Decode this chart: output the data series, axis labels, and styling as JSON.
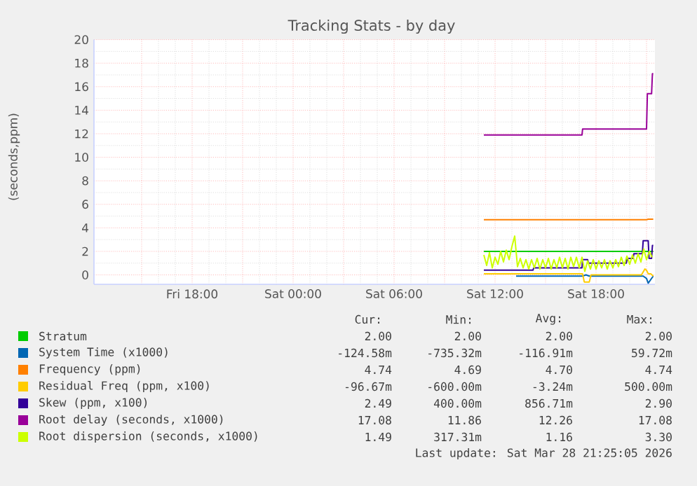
{
  "chart_data": {
    "type": "line",
    "title": "Tracking Stats - by day",
    "ylabel": "(seconds,ppm)",
    "xlim": [
      "2026-03-27T12:10",
      "2026-03-28T21:30"
    ],
    "ylim": [
      -0.8,
      20
    ],
    "xticks": [
      {
        "value": "2026-03-27T15:00",
        "label": null
      },
      {
        "value": "2026-03-27T18:00",
        "label": "Fri 18:00"
      },
      {
        "value": "2026-03-27T21:00",
        "label": null
      },
      {
        "value": "2026-03-28T00:00",
        "label": "Sat 00:00"
      },
      {
        "value": "2026-03-28T03:00",
        "label": null
      },
      {
        "value": "2026-03-28T06:00",
        "label": "Sat 06:00"
      },
      {
        "value": "2026-03-28T09:00",
        "label": null
      },
      {
        "value": "2026-03-28T12:00",
        "label": "Sat 12:00"
      },
      {
        "value": "2026-03-28T15:00",
        "label": null
      },
      {
        "value": "2026-03-28T18:00",
        "label": "Sat 18:00"
      },
      {
        "value": "2026-03-28T21:00",
        "label": null
      }
    ],
    "yticks": [
      0,
      2,
      4,
      6,
      8,
      10,
      12,
      14,
      16,
      18,
      20
    ],
    "grid": true,
    "legend": "bottom",
    "marker": "none",
    "line_style": "solid",
    "series": [
      {
        "name": "Stratum",
        "color": "#00cc00",
        "x": [
          "2026-03-28T11:20",
          "2026-03-28T21:24"
        ],
        "values": [
          2,
          2
        ]
      },
      {
        "name": "System Time (x1000)",
        "color": "#0066b3",
        "x": [
          "2026-03-28T13:15",
          "2026-03-28T14:30",
          "2026-03-28T15:00",
          "2026-03-28T17:12",
          "2026-03-28T17:24",
          "2026-03-28T17:36",
          "2026-03-28T18:00",
          "2026-03-28T20:48",
          "2026-03-28T21:00",
          "2026-03-28T21:06",
          "2026-03-28T21:15",
          "2026-03-28T21:24"
        ],
        "values": [
          -0.1,
          -0.1,
          -0.1,
          -0.1,
          0,
          -0.1,
          -0.1,
          -0.1,
          -0.3,
          -0.7,
          -0.4,
          -0.1
        ]
      },
      {
        "name": "Frequency (ppm)",
        "color": "#ff8000",
        "x": [
          "2026-03-28T11:20",
          "2026-03-28T21:00",
          "2026-03-28T21:06",
          "2026-03-28T21:24"
        ],
        "values": [
          4.69,
          4.69,
          4.74,
          4.74
        ]
      },
      {
        "name": "Residual Freq (ppm, x100)",
        "color": "#ffcc00",
        "x": [
          "2026-03-28T11:20",
          "2026-03-28T17:12",
          "2026-03-28T17:18",
          "2026-03-28T17:36",
          "2026-03-28T17:42",
          "2026-03-28T18:00",
          "2026-03-28T20:42",
          "2026-03-28T20:54",
          "2026-03-28T21:00",
          "2026-03-28T21:06",
          "2026-03-28T21:15",
          "2026-03-28T21:24"
        ],
        "values": [
          0.1,
          0.1,
          -0.6,
          -0.6,
          0,
          0,
          0,
          0.5,
          0.4,
          0.1,
          0.1,
          -0.1
        ]
      },
      {
        "name": "Skew (ppm, x100)",
        "color": "#330099",
        "x": [
          "2026-03-28T11:20",
          "2026-03-28T14:15",
          "2026-03-28T14:18",
          "2026-03-28T17:10",
          "2026-03-28T17:12",
          "2026-03-28T17:30",
          "2026-03-28T17:33",
          "2026-03-28T19:48",
          "2026-03-28T19:51",
          "2026-03-28T20:12",
          "2026-03-28T20:15",
          "2026-03-28T20:45",
          "2026-03-28T20:48",
          "2026-03-28T21:06",
          "2026-03-28T21:09",
          "2026-03-28T21:18",
          "2026-03-28T21:21",
          "2026-03-28T21:24"
        ],
        "values": [
          0.4,
          0.4,
          0.6,
          0.6,
          1.3,
          1.3,
          1.0,
          1.0,
          1.4,
          1.4,
          1.8,
          1.8,
          2.9,
          2.9,
          1.4,
          1.4,
          2.5,
          2.5
        ]
      },
      {
        "name": "Root delay (seconds, x1000)",
        "color": "#990099",
        "x": [
          "2026-03-28T11:20",
          "2026-03-28T17:10",
          "2026-03-28T17:12",
          "2026-03-28T21:00",
          "2026-03-28T21:03",
          "2026-03-28T21:18",
          "2026-03-28T21:21",
          "2026-03-28T21:24"
        ],
        "values": [
          11.9,
          11.9,
          12.4,
          12.4,
          15.4,
          15.4,
          17.1,
          17.1
        ]
      },
      {
        "name": "Root dispersion (seconds, x1000)",
        "color": "#ccff00",
        "x": [
          "2026-03-28T11:20",
          "2026-03-28T11:30",
          "2026-03-28T11:40",
          "2026-03-28T11:50",
          "2026-03-28T12:00",
          "2026-03-28T12:10",
          "2026-03-28T12:20",
          "2026-03-28T12:30",
          "2026-03-28T12:40",
          "2026-03-28T12:50",
          "2026-03-28T13:00",
          "2026-03-28T13:10",
          "2026-03-28T13:20",
          "2026-03-28T13:30",
          "2026-03-28T13:40",
          "2026-03-28T13:50",
          "2026-03-28T14:00",
          "2026-03-28T14:10",
          "2026-03-28T14:20",
          "2026-03-28T14:30",
          "2026-03-28T14:40",
          "2026-03-28T14:50",
          "2026-03-28T15:00",
          "2026-03-28T15:10",
          "2026-03-28T15:20",
          "2026-03-28T15:30",
          "2026-03-28T15:40",
          "2026-03-28T15:50",
          "2026-03-28T16:00",
          "2026-03-28T16:10",
          "2026-03-28T16:20",
          "2026-03-28T16:30",
          "2026-03-28T16:40",
          "2026-03-28T16:50",
          "2026-03-28T17:00",
          "2026-03-28T17:10",
          "2026-03-28T17:20",
          "2026-03-28T17:30",
          "2026-03-28T17:40",
          "2026-03-28T17:50",
          "2026-03-28T18:00",
          "2026-03-28T18:10",
          "2026-03-28T18:20",
          "2026-03-28T18:30",
          "2026-03-28T18:40",
          "2026-03-28T18:50",
          "2026-03-28T19:00",
          "2026-03-28T19:10",
          "2026-03-28T19:20",
          "2026-03-28T19:30",
          "2026-03-28T19:40",
          "2026-03-28T19:50",
          "2026-03-28T20:00",
          "2026-03-28T20:10",
          "2026-03-28T20:20",
          "2026-03-28T20:30",
          "2026-03-28T20:40",
          "2026-03-28T20:50",
          "2026-03-28T21:00",
          "2026-03-28T21:10",
          "2026-03-28T21:20"
        ],
        "values": [
          1.7,
          0.8,
          1.9,
          0.6,
          1.5,
          0.9,
          2.0,
          1.1,
          2.1,
          1.3,
          2.4,
          3.3,
          0.7,
          1.4,
          0.6,
          1.3,
          0.5,
          1.3,
          0.6,
          1.4,
          0.5,
          1.3,
          0.6,
          1.4,
          0.5,
          1.3,
          0.6,
          1.5,
          0.6,
          1.4,
          0.5,
          1.5,
          0.7,
          1.5,
          0.6,
          1.5,
          0.3,
          1.2,
          0.5,
          1.3,
          0.5,
          1.2,
          0.6,
          1.3,
          0.5,
          1.2,
          0.6,
          1.3,
          0.7,
          1.5,
          0.8,
          1.6,
          0.9,
          1.7,
          1.0,
          1.8,
          1.1,
          2.2,
          1.3,
          2.0,
          1.5
        ]
      }
    ],
    "annotations": [
      "Cur:",
      "Min:",
      "Avg:",
      "Max:",
      "2.00",
      "2.00",
      "2.00",
      "2.00",
      "-124.58m",
      "-735.32m",
      "-116.91m",
      "59.72m",
      "4.74",
      "4.69",
      "4.70",
      "4.74",
      "-96.67m",
      "-600.00m",
      "-3.24m",
      "500.00m",
      "2.49",
      "400.00m",
      "856.71m",
      "2.90",
      "17.08",
      "11.86",
      "12.26",
      "17.08",
      "1.49",
      "317.31m",
      "1.16",
      "3.30",
      "Last update: Sat Mar 28 21:25:05 2026"
    ]
  }
}
